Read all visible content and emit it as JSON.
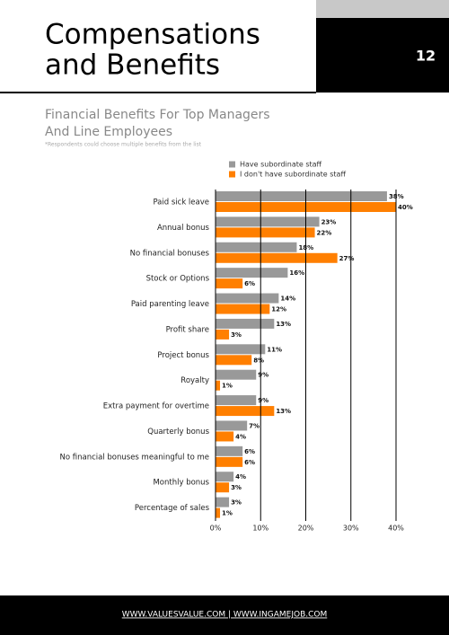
{
  "page": {
    "title_lines": [
      "Compensations",
      "and Benefits"
    ],
    "number": "12",
    "footer": "WWW.VALUESVALUE.COM | WWW.INGAMEJOB.COM"
  },
  "chart_data": {
    "type": "hbar",
    "title_lines": [
      "Financial Benefits For Top Managers",
      "And Line Employees"
    ],
    "note": "*Respondents could choose multiple benefits from the list",
    "categories": [
      "Paid sick leave",
      "Annual bonus",
      "No financial bonuses",
      "Stock or Options",
      "Paid parenting leave",
      "Profit share",
      "Project bonus",
      "Royalty",
      "Extra payment for overtime",
      "Quarterly bonus",
      "No financial bonuses meaningful to me",
      "Monthly bonus",
      "Percentage of sales"
    ],
    "series": [
      {
        "name": "Have subordinate staff",
        "color": "#999999",
        "values": [
          38,
          23,
          18,
          16,
          14,
          13,
          11,
          9,
          9,
          7,
          6,
          4,
          3
        ],
        "value_labels": [
          "38%",
          "23%",
          "18%",
          "16%",
          "14%",
          "13%",
          "11%",
          "9%",
          "9%",
          "7%",
          "6%",
          "4%",
          "3%"
        ]
      },
      {
        "name": "I don't have subordinate staff",
        "color": "#ff7f00",
        "values": [
          40,
          22,
          27,
          6,
          12,
          3,
          8,
          1,
          13,
          4,
          6,
          3,
          1
        ],
        "value_labels": [
          "40%",
          "22%",
          "27%",
          "6%",
          "12%",
          "3%",
          "8%",
          "1%",
          "13%",
          "4%",
          "6%",
          "3%",
          "1%"
        ]
      }
    ],
    "xlim": [
      0,
      40
    ],
    "xticks": [
      {
        "value": 0,
        "label": "0%"
      },
      {
        "value": 10,
        "label": "10%"
      },
      {
        "value": 20,
        "label": "20%"
      },
      {
        "value": 30,
        "label": "30%"
      },
      {
        "value": 40,
        "label": "40%"
      }
    ],
    "grid": true
  }
}
